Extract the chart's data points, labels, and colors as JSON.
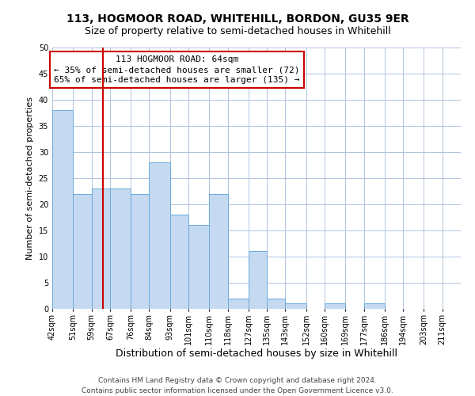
{
  "title": "113, HOGMOOR ROAD, WHITEHILL, BORDON, GU35 9ER",
  "subtitle": "Size of property relative to semi-detached houses in Whitehill",
  "xlabel": "Distribution of semi-detached houses by size in Whitehill",
  "ylabel": "Number of semi-detached properties",
  "bins": [
    42,
    51,
    59,
    67,
    76,
    84,
    93,
    101,
    110,
    118,
    127,
    135,
    143,
    152,
    160,
    169,
    177,
    186,
    194,
    203,
    211
  ],
  "values": [
    38,
    22,
    23,
    23,
    22,
    28,
    18,
    16,
    22,
    2,
    11,
    2,
    1,
    0,
    1,
    0,
    1,
    0,
    0,
    0
  ],
  "bar_color": "#c5d9f1",
  "bar_edge_color": "#6aacdc",
  "red_line_x": 64,
  "annotation_title": "113 HOGMOOR ROAD: 64sqm",
  "annotation_line1": "← 35% of semi-detached houses are smaller (72)",
  "annotation_line2": "65% of semi-detached houses are larger (135) →",
  "annotation_box_color": "#ffffff",
  "annotation_box_edge": "#cc0000",
  "red_line_color": "#cc0000",
  "ylim": [
    0,
    50
  ],
  "yticks": [
    0,
    5,
    10,
    15,
    20,
    25,
    30,
    35,
    40,
    45,
    50
  ],
  "grid_color": "#b0c4de",
  "footer_line1": "Contains HM Land Registry data © Crown copyright and database right 2024.",
  "footer_line2": "Contains public sector information licensed under the Open Government Licence v3.0.",
  "title_fontsize": 10,
  "subtitle_fontsize": 9,
  "xlabel_fontsize": 9,
  "ylabel_fontsize": 8,
  "tick_fontsize": 7,
  "annotation_fontsize": 8,
  "footer_fontsize": 6.5
}
